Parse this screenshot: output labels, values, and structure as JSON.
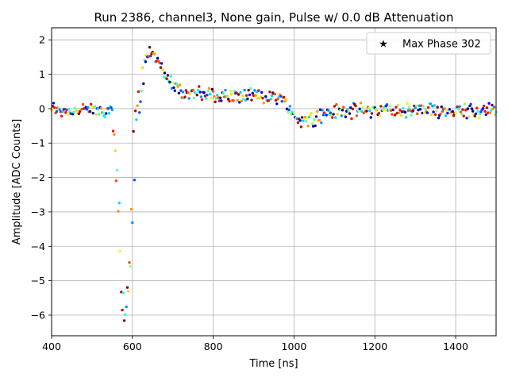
{
  "chart_data": {
    "type": "scatter",
    "title": "Run 2386, channel3, None gain, Pulse w/ 0.0 dB Attenuation",
    "xlabel": "Time [ns]",
    "ylabel": "Amplitude [ADC Counts]",
    "xlim": [
      400,
      1500
    ],
    "ylim": [
      -6.6,
      2.35
    ],
    "x_ticks": [
      400,
      600,
      800,
      1000,
      1200,
      1400
    ],
    "x_tick_labels": [
      "400",
      "600",
      "800",
      "1000",
      "1200",
      "1400"
    ],
    "y_ticks": [
      2,
      1,
      0,
      -1,
      -2,
      -3,
      -4,
      -5,
      -6
    ],
    "y_tick_labels": [
      "2",
      "1",
      "0",
      "−1",
      "−2",
      "−3",
      "−4",
      "−5",
      "−6"
    ],
    "grid": true,
    "legend": {
      "position": "top-right",
      "entries": [
        {
          "marker": "star",
          "label": "Max Phase 302"
        }
      ]
    },
    "colormap": "jet",
    "waveform": [
      [
        400,
        0.0
      ],
      [
        420,
        -0.05
      ],
      [
        440,
        -0.05
      ],
      [
        460,
        -0.05
      ],
      [
        480,
        -0.05
      ],
      [
        500,
        -0.05
      ],
      [
        520,
        -0.05
      ],
      [
        540,
        -0.05
      ],
      [
        550,
        -0.1
      ],
      [
        555,
        -0.5
      ],
      [
        560,
        -1.3
      ],
      [
        565,
        -2.5
      ],
      [
        570,
        -4.0
      ],
      [
        575,
        -5.2
      ],
      [
        580,
        -5.9
      ],
      [
        585,
        -6.0
      ],
      [
        590,
        -5.7
      ],
      [
        595,
        -4.5
      ],
      [
        600,
        -2.5
      ],
      [
        605,
        -1.0
      ],
      [
        610,
        -0.2
      ],
      [
        615,
        0.1
      ],
      [
        620,
        0.5
      ],
      [
        625,
        1.0
      ],
      [
        630,
        1.4
      ],
      [
        640,
        1.6
      ],
      [
        650,
        1.65
      ],
      [
        660,
        1.5
      ],
      [
        670,
        1.2
      ],
      [
        680,
        1.0
      ],
      [
        690,
        0.85
      ],
      [
        700,
        0.7
      ],
      [
        720,
        0.55
      ],
      [
        740,
        0.45
      ],
      [
        760,
        0.42
      ],
      [
        780,
        0.4
      ],
      [
        800,
        0.4
      ],
      [
        850,
        0.35
      ],
      [
        900,
        0.35
      ],
      [
        950,
        0.35
      ],
      [
        970,
        0.3
      ],
      [
        985,
        0.05
      ],
      [
        1000,
        -0.2
      ],
      [
        1020,
        -0.35
      ],
      [
        1040,
        -0.3
      ],
      [
        1060,
        -0.2
      ],
      [
        1100,
        -0.1
      ],
      [
        1150,
        -0.05
      ],
      [
        1200,
        -0.05
      ],
      [
        1250,
        -0.05
      ],
      [
        1300,
        -0.05
      ],
      [
        1350,
        -0.05
      ],
      [
        1400,
        -0.05
      ],
      [
        1450,
        -0.05
      ],
      [
        1500,
        -0.05
      ]
    ],
    "phases": 16,
    "sample_period_ns": 2.5
  }
}
